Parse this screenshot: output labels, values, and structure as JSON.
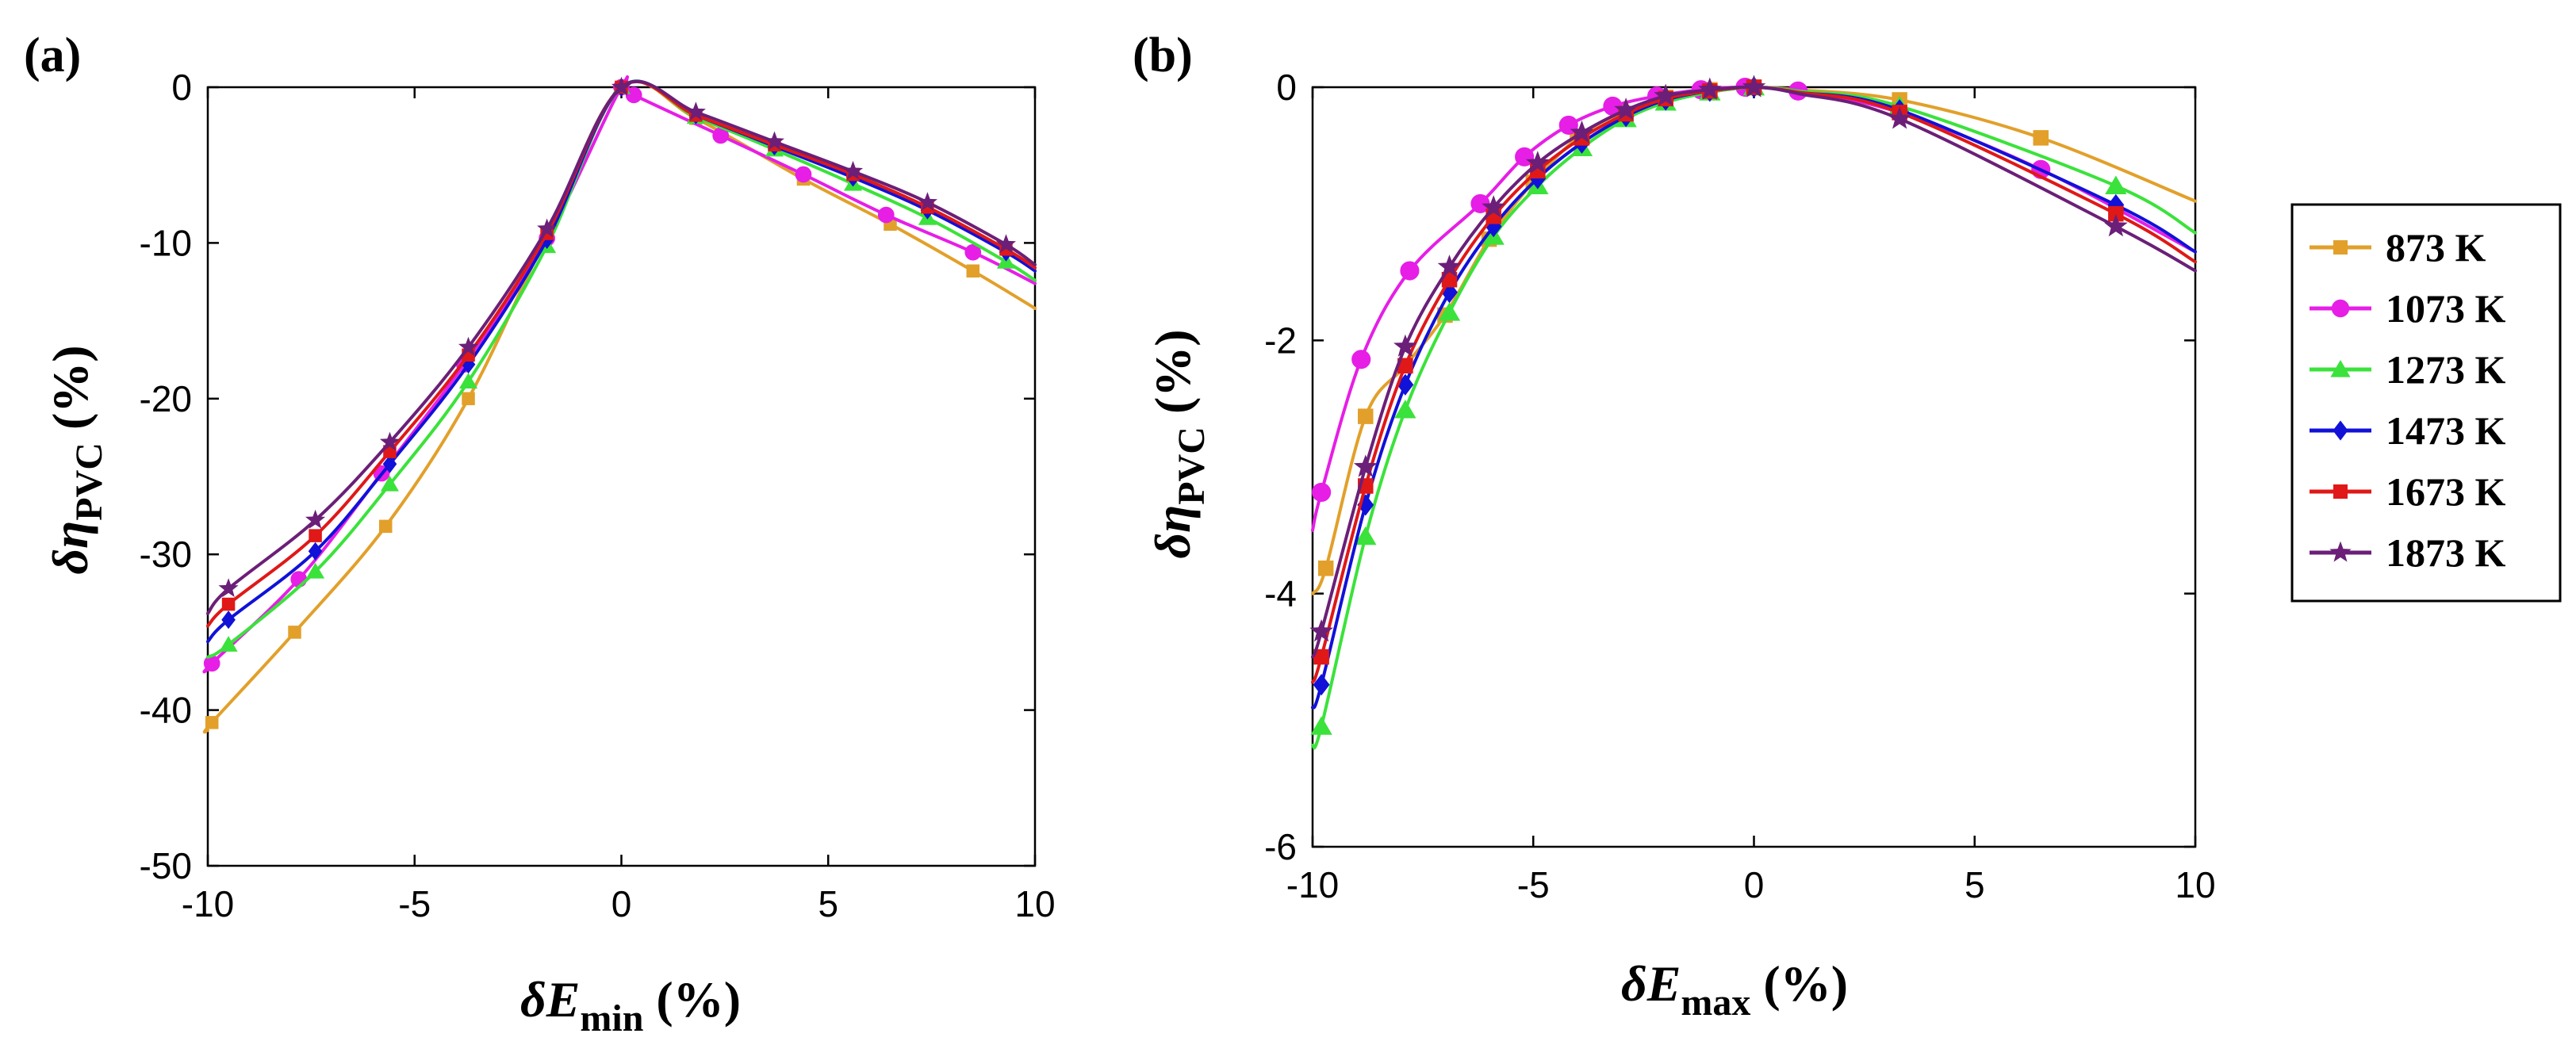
{
  "legend": [
    {
      "label": "873 K",
      "color": "#E2A02A",
      "marker": "square"
    },
    {
      "label": "1073 K",
      "color": "#E61EE6",
      "marker": "circle"
    },
    {
      "label": "1273 K",
      "color": "#3BE23B",
      "marker": "triangle"
    },
    {
      "label": "1473 K",
      "color": "#1111D8",
      "marker": "diamond"
    },
    {
      "label": "1673 K",
      "color": "#E01818",
      "marker": "square"
    },
    {
      "label": "1873 K",
      "color": "#6B1F78",
      "marker": "star"
    }
  ],
  "chart_data": [
    {
      "type": "line",
      "panel_label": "(a)",
      "xlabel": {
        "main": "δE",
        "sub": "min",
        "unit": " (%)"
      },
      "ylabel": {
        "main": "δη",
        "sub": "PVC",
        "unit": " (%)"
      },
      "xlim": [
        -10,
        10
      ],
      "ylim": [
        -50,
        0
      ],
      "xticks": [
        -10,
        -5,
        0,
        5,
        10
      ],
      "yticks": [
        0,
        -10,
        -20,
        -30,
        -40,
        -50
      ],
      "grid": false,
      "series": [
        {
          "name": "873 K",
          "x": [
            -10,
            -9.9,
            -7.9,
            -5.7,
            -3.7,
            -1.8,
            0,
            1.8,
            4.4,
            6.5,
            8.5,
            10
          ],
          "y": [
            -41.3,
            -40.8,
            -35.0,
            -28.2,
            -20.0,
            -9.5,
            0,
            -2.0,
            -5.9,
            -8.8,
            -11.8,
            -14.2
          ],
          "marker_x": [
            -9.9,
            -7.9,
            -5.7,
            -3.7,
            -1.8,
            0,
            1.8,
            4.4,
            6.5,
            8.5
          ]
        },
        {
          "name": "1073 K",
          "x": [
            -10,
            -9.9,
            -7.8,
            -5.8,
            -3.8,
            -1.8,
            0,
            0.3,
            2.4,
            4.4,
            6.4,
            8.5,
            10
          ],
          "y": [
            -37.4,
            -37.0,
            -31.6,
            -24.8,
            -17.8,
            -9.7,
            0,
            -0.5,
            -3.1,
            -5.6,
            -8.2,
            -10.6,
            -12.6
          ],
          "marker_x": [
            -9.9,
            -7.8,
            -5.8,
            -3.8,
            -1.8,
            0,
            0.3,
            2.4,
            4.4,
            6.4,
            8.5
          ]
        },
        {
          "name": "1273 K",
          "x": [
            -10,
            -9.5,
            -7.4,
            -5.6,
            -3.7,
            -1.8,
            0,
            1.8,
            3.7,
            5.6,
            7.4,
            9.3,
            10
          ],
          "y": [
            -36.6,
            -35.8,
            -31.1,
            -25.5,
            -18.9,
            -10.2,
            0,
            -1.9,
            -4.0,
            -6.2,
            -8.4,
            -11.2,
            -12.4
          ],
          "marker_x": [
            -9.5,
            -7.4,
            -5.6,
            -3.7,
            -1.8,
            0,
            1.8,
            3.7,
            5.6,
            7.4,
            9.3
          ]
        },
        {
          "name": "1473 K",
          "x": [
            -10,
            -9.5,
            -7.4,
            -5.6,
            -3.7,
            -1.8,
            0,
            1.8,
            3.7,
            5.6,
            7.4,
            9.3,
            10
          ],
          "y": [
            -35.6,
            -34.2,
            -29.8,
            -24.2,
            -17.8,
            -9.8,
            0,
            -1.8,
            -3.8,
            -5.8,
            -7.9,
            -10.6,
            -11.8
          ],
          "marker_x": [
            -9.5,
            -7.4,
            -5.6,
            -3.7,
            -1.8,
            0,
            1.8,
            3.7,
            5.6,
            7.4,
            9.3
          ]
        },
        {
          "name": "1673 K",
          "x": [
            -10,
            -9.5,
            -7.4,
            -5.6,
            -3.7,
            -1.8,
            0,
            1.8,
            3.7,
            5.6,
            7.4,
            9.3,
            10
          ],
          "y": [
            -34.6,
            -33.2,
            -28.8,
            -23.4,
            -17.2,
            -9.4,
            0,
            -1.8,
            -3.7,
            -5.6,
            -7.7,
            -10.4,
            -11.6
          ],
          "marker_x": [
            -9.5,
            -7.4,
            -5.6,
            -3.7,
            -1.8,
            0,
            1.8,
            3.7,
            5.6,
            7.4,
            9.3
          ]
        },
        {
          "name": "1873 K",
          "x": [
            -10,
            -9.5,
            -7.4,
            -5.6,
            -3.7,
            -1.8,
            0,
            1.8,
            3.7,
            5.6,
            7.4,
            9.3,
            10
          ],
          "y": [
            -33.8,
            -32.2,
            -27.8,
            -22.8,
            -16.7,
            -9.1,
            0,
            -1.6,
            -3.5,
            -5.4,
            -7.4,
            -10.1,
            -11.4
          ],
          "marker_x": [
            -9.5,
            -7.4,
            -5.6,
            -3.7,
            -1.8,
            0,
            1.8,
            3.7,
            5.6,
            7.4,
            9.3
          ]
        }
      ]
    },
    {
      "type": "line",
      "panel_label": "(b)",
      "xlabel": {
        "main": "δE",
        "sub": "max",
        "unit": " (%)"
      },
      "ylabel": {
        "main": "δη",
        "sub": "PVC",
        "unit": " (%)"
      },
      "xlim": [
        -10,
        10
      ],
      "ylim": [
        -6,
        0
      ],
      "xticks": [
        -10,
        -5,
        0,
        5,
        10
      ],
      "yticks": [
        0,
        -2,
        -4,
        -6
      ],
      "grid": false,
      "series": [
        {
          "name": "873 K",
          "x": [
            -10,
            -9.7,
            -8.8,
            -7.9,
            -7.0,
            -6.0,
            -5.0,
            -4.0,
            -3.0,
            -2.0,
            -1.0,
            0,
            1.0,
            3.3,
            6.5,
            10
          ],
          "y": [
            -4.0,
            -3.8,
            -2.6,
            -2.2,
            -1.8,
            -1.2,
            -0.75,
            -0.4,
            -0.2,
            -0.08,
            -0.02,
            0,
            -0.02,
            -0.1,
            -0.4,
            -0.9
          ],
          "marker_x": [
            -9.7,
            -8.8,
            -7.9,
            -7.0,
            -6.0,
            -5.0,
            -4.0,
            -3.0,
            -2.0,
            -1.0,
            0,
            3.3,
            6.5
          ]
        },
        {
          "name": "1073 K",
          "x": [
            -10,
            -9.8,
            -8.9,
            -7.8,
            -6.2,
            -5.2,
            -4.2,
            -3.2,
            -2.2,
            -1.2,
            -0.2,
            1.0,
            3.3,
            6.5,
            10
          ],
          "y": [
            -3.5,
            -3.2,
            -2.15,
            -1.45,
            -0.92,
            -0.55,
            -0.3,
            -0.15,
            -0.07,
            -0.02,
            0,
            -0.03,
            -0.2,
            -0.65,
            -1.3
          ],
          "marker_x": [
            -9.8,
            -8.9,
            -7.8,
            -6.2,
            -5.2,
            -4.2,
            -3.2,
            -2.2,
            -1.2,
            -0.2,
            1.0,
            3.3,
            6.5
          ]
        },
        {
          "name": "1273 K",
          "x": [
            -10,
            -9.8,
            -8.8,
            -7.9,
            -6.9,
            -5.9,
            -4.9,
            -3.9,
            -2.9,
            -2.0,
            -1.0,
            0,
            1.0,
            3.3,
            8.2,
            10
          ],
          "y": [
            -5.2,
            -5.05,
            -3.55,
            -2.55,
            -1.78,
            -1.18,
            -0.78,
            -0.48,
            -0.25,
            -0.12,
            -0.04,
            0,
            -0.03,
            -0.15,
            -0.78,
            -1.15
          ],
          "marker_x": [
            -9.8,
            -8.8,
            -7.9,
            -6.9,
            -5.9,
            -4.9,
            -3.9,
            -2.9,
            -2.0,
            -1.0,
            0,
            3.3,
            8.2
          ]
        },
        {
          "name": "1473 K",
          "x": [
            -10,
            -9.8,
            -8.8,
            -7.9,
            -6.9,
            -5.9,
            -4.9,
            -3.9,
            -2.9,
            -2.0,
            -1.0,
            0,
            1.0,
            3.3,
            8.2,
            10
          ],
          "y": [
            -4.9,
            -4.72,
            -3.3,
            -2.35,
            -1.62,
            -1.1,
            -0.72,
            -0.44,
            -0.23,
            -0.1,
            -0.03,
            0,
            -0.04,
            -0.18,
            -0.93,
            -1.3
          ],
          "marker_x": [
            -9.8,
            -8.8,
            -7.9,
            -6.9,
            -5.9,
            -4.9,
            -3.9,
            -2.9,
            -2.0,
            -1.0,
            0,
            3.3,
            8.2
          ]
        },
        {
          "name": "1673 K",
          "x": [
            -10,
            -9.8,
            -8.8,
            -7.9,
            -6.9,
            -5.9,
            -4.9,
            -3.9,
            -2.9,
            -2.0,
            -1.0,
            0,
            1.0,
            3.3,
            8.2,
            10
          ],
          "y": [
            -4.7,
            -4.5,
            -3.15,
            -2.2,
            -1.52,
            -1.02,
            -0.66,
            -0.4,
            -0.21,
            -0.09,
            -0.03,
            0,
            -0.04,
            -0.2,
            -1.0,
            -1.38
          ],
          "marker_x": [
            -9.8,
            -8.8,
            -7.9,
            -6.9,
            -5.9,
            -4.9,
            -3.9,
            -2.9,
            -2.0,
            -1.0,
            0,
            3.3,
            8.2
          ]
        },
        {
          "name": "1873 K",
          "x": [
            -10,
            -9.8,
            -8.8,
            -7.9,
            -6.9,
            -5.9,
            -4.9,
            -3.9,
            -2.9,
            -2.0,
            -1.0,
            0,
            1.0,
            3.3,
            8.2,
            10
          ],
          "y": [
            -4.5,
            -4.3,
            -3.0,
            -2.05,
            -1.42,
            -0.95,
            -0.6,
            -0.36,
            -0.18,
            -0.07,
            -0.02,
            0,
            -0.05,
            -0.25,
            -1.1,
            -1.45
          ],
          "marker_x": [
            -9.8,
            -8.8,
            -7.9,
            -6.9,
            -5.9,
            -4.9,
            -3.9,
            -2.9,
            -2.0,
            -1.0,
            0,
            3.3,
            8.2
          ]
        }
      ]
    }
  ]
}
